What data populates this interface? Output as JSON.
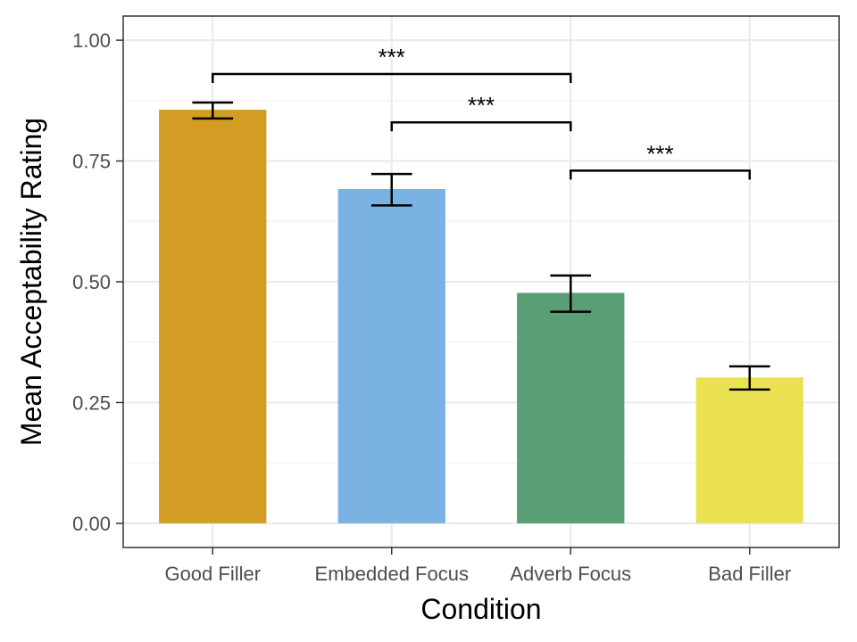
{
  "chart_data": {
    "type": "bar",
    "title": "",
    "xlabel": "Condition",
    "ylabel": "Mean Acceptability Rating",
    "categories": [
      "Good Filler",
      "Embedded Focus",
      "Adverb Focus",
      "Bad Filler"
    ],
    "values": [
      0.856,
      0.692,
      0.477,
      0.302
    ],
    "error_bars": [
      {
        "low": 0.838,
        "high": 0.871
      },
      {
        "low": 0.658,
        "high": 0.723
      },
      {
        "low": 0.438,
        "high": 0.513
      },
      {
        "low": 0.277,
        "high": 0.325
      }
    ],
    "colors": [
      "#D39D25",
      "#7AB2E4",
      "#5A9E75",
      "#EAE253"
    ],
    "ylim": [
      -0.05,
      1.05
    ],
    "yticks": [
      0.0,
      0.25,
      0.5,
      0.75,
      1.0
    ],
    "ytick_labels": [
      "0.00",
      "0.25",
      "0.50",
      "0.75",
      "1.00"
    ],
    "grid": true,
    "significance": [
      {
        "from": 0,
        "to": 2,
        "y": 0.93,
        "drop_to": [
          0.92,
          0.92
        ],
        "label": "***"
      },
      {
        "from": 1,
        "to": 2,
        "y": 0.83,
        "drop_to": [
          0.82,
          0.82
        ],
        "label": "***"
      },
      {
        "from": 2,
        "to": 3,
        "y": 0.73,
        "drop_to": [
          0.72,
          0.72
        ],
        "label": "***"
      }
    ]
  }
}
